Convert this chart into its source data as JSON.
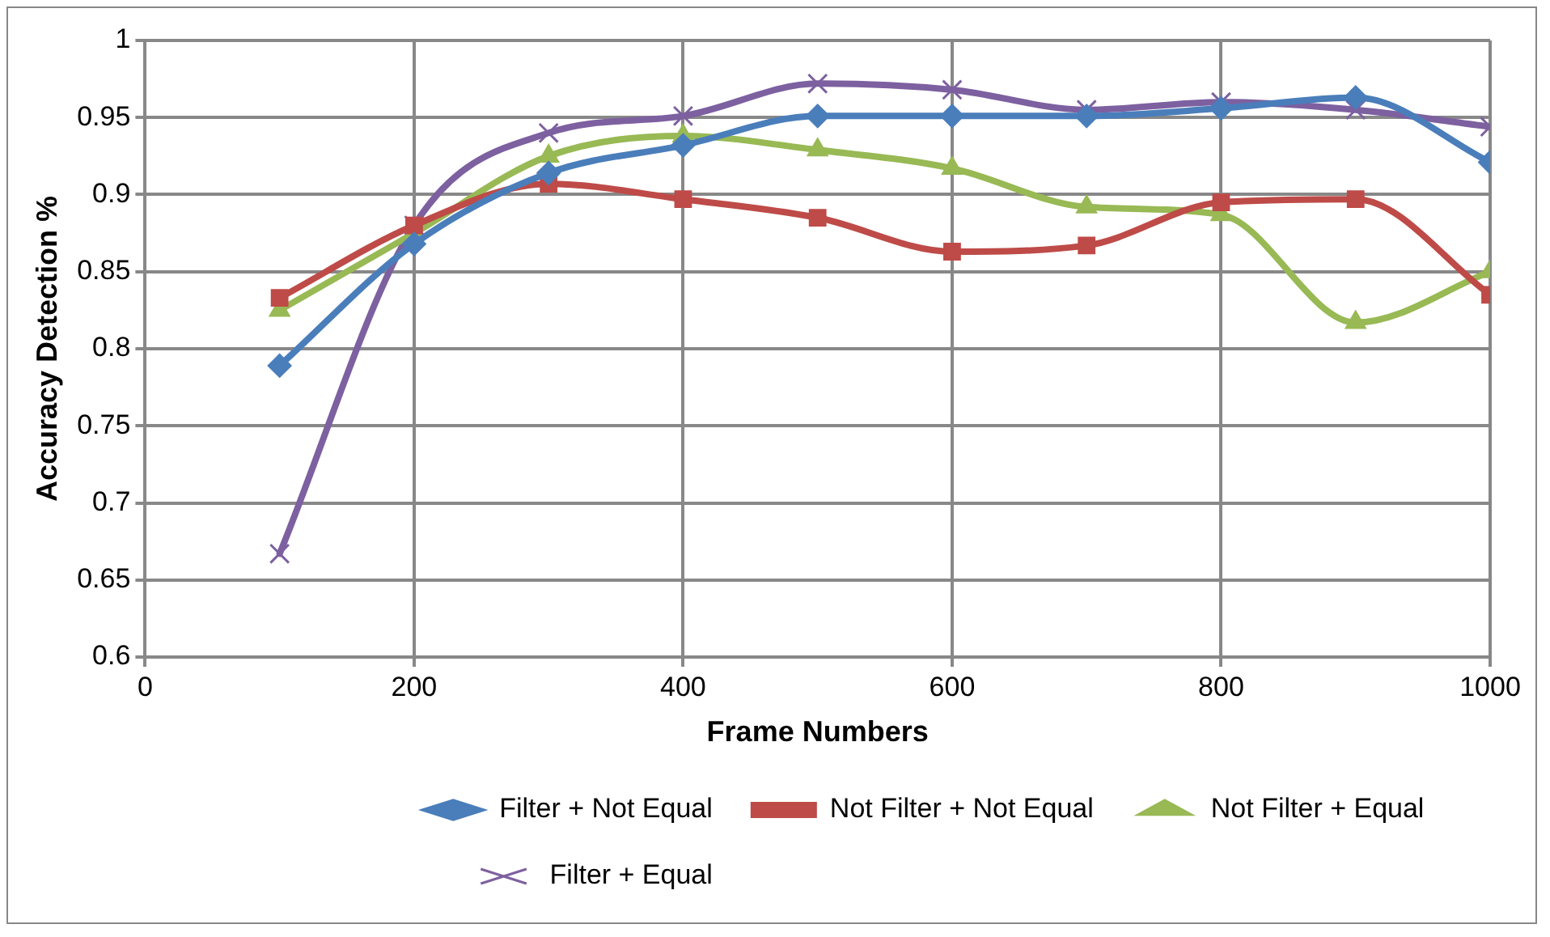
{
  "chart_data": {
    "type": "line",
    "xlabel": "Frame Numbers",
    "ylabel": "Accuracy Detection %",
    "x": [
      100,
      200,
      300,
      400,
      500,
      600,
      700,
      800,
      900,
      1000
    ],
    "xlim": [
      0,
      1000
    ],
    "xticks": [
      0,
      200,
      400,
      600,
      800,
      1000
    ],
    "ylim": [
      0.6,
      1
    ],
    "yticks": [
      0.6,
      0.65,
      0.7,
      0.75,
      0.8,
      0.85,
      0.9,
      0.95,
      1
    ],
    "grid": true,
    "legend": "bottom",
    "series": [
      {
        "name": "Filter + Not Equal",
        "color": "#4a7ebb",
        "marker": "diamond",
        "values": [
          0.789,
          0.868,
          0.914,
          0.932,
          0.951,
          0.951,
          0.951,
          0.956,
          0.963,
          0.921
        ]
      },
      {
        "name": "Not Filter + Not Equal",
        "color": "#be4b48",
        "marker": "square",
        "values": [
          0.833,
          0.88,
          0.907,
          0.897,
          0.885,
          0.863,
          0.867,
          0.895,
          0.897,
          0.835
        ]
      },
      {
        "name": "Not Filter + Equal",
        "color": "#98b954",
        "marker": "triangle",
        "values": [
          0.825,
          0.875,
          0.925,
          0.938,
          0.929,
          0.917,
          0.892,
          0.887,
          0.817,
          0.85
        ]
      },
      {
        "name": "Filter + Equal",
        "color": "#7d60a0",
        "marker": "cross",
        "values": [
          0.667,
          0.88,
          0.94,
          0.951,
          0.972,
          0.968,
          0.955,
          0.96,
          0.955,
          0.944
        ]
      }
    ]
  }
}
